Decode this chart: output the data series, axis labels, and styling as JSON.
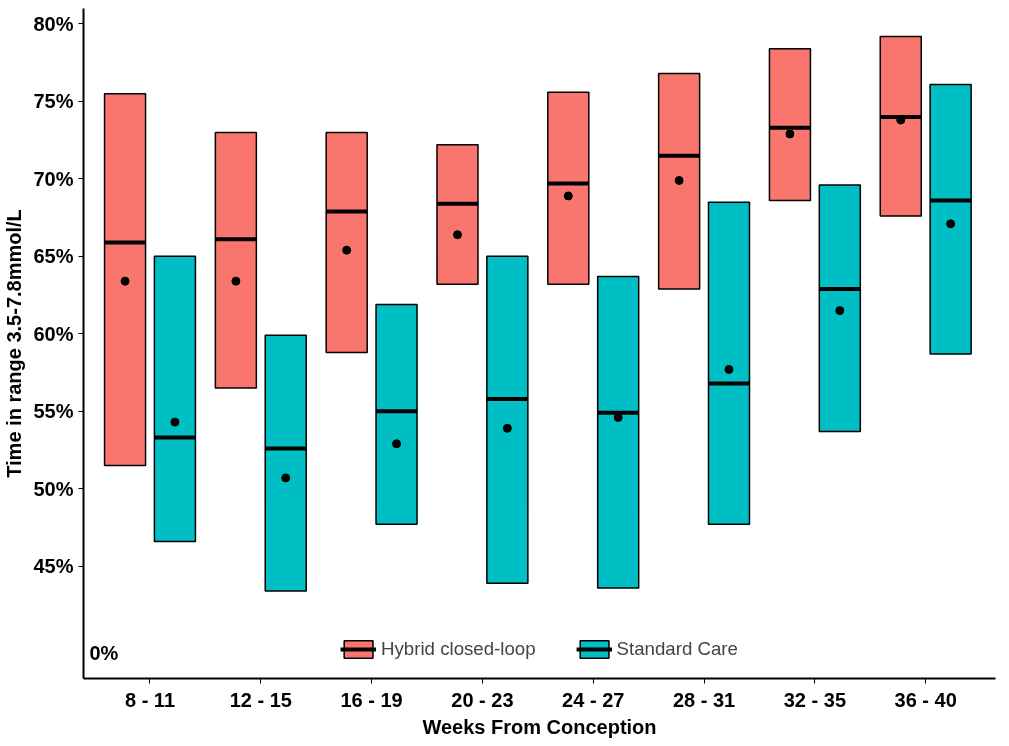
{
  "chart_data": {
    "type": "box",
    "xlabel": "Weeks From Conception",
    "ylabel": "Time in range 3.5-7.8mmol/L",
    "categories": [
      "8 - 11",
      "12 - 15",
      "16 - 19",
      "20 - 23",
      "24 - 27",
      "28 - 31",
      "32 - 35",
      "36 - 40"
    ],
    "ylim": [
      37.75,
      81
    ],
    "yticks": [
      {
        "value": 45,
        "label": "45%"
      },
      {
        "value": 50,
        "label": "50%"
      },
      {
        "value": 55,
        "label": "55%"
      },
      {
        "value": 60,
        "label": "60%"
      },
      {
        "value": 65,
        "label": "65%"
      },
      {
        "value": 70,
        "label": "70%"
      },
      {
        "value": 75,
        "label": "75%"
      },
      {
        "value": 80,
        "label": "80%"
      }
    ],
    "annotations": [
      "0%"
    ],
    "grid": false,
    "legend": "bottom",
    "marker": "circle",
    "series": [
      {
        "name": "Hybrid closed-loop",
        "color": "#f8766d",
        "boxes": [
          {
            "low": 51.5,
            "q1": 51.5,
            "median": 65.9,
            "q3": 75.5,
            "high": 75.5,
            "mean": 63.4
          },
          {
            "low": 56.5,
            "q1": 56.5,
            "median": 66.1,
            "q3": 73.0,
            "high": 73.0,
            "mean": 63.4
          },
          {
            "low": 58.8,
            "q1": 58.8,
            "median": 67.9,
            "q3": 73.0,
            "high": 73.0,
            "mean": 65.4
          },
          {
            "low": 63.2,
            "q1": 63.2,
            "median": 68.4,
            "q3": 72.2,
            "high": 72.2,
            "mean": 66.4
          },
          {
            "low": 63.2,
            "q1": 63.2,
            "median": 69.7,
            "q3": 75.6,
            "high": 75.6,
            "mean": 68.9
          },
          {
            "low": 62.9,
            "q1": 62.9,
            "median": 71.5,
            "q3": 76.8,
            "high": 76.8,
            "mean": 69.9
          },
          {
            "low": 68.6,
            "q1": 68.6,
            "median": 73.3,
            "q3": 78.4,
            "high": 78.4,
            "mean": 72.9
          },
          {
            "low": 67.6,
            "q1": 67.6,
            "median": 74.0,
            "q3": 79.2,
            "high": 79.2,
            "mean": 73.8
          }
        ]
      },
      {
        "name": "Standard Care",
        "color": "#00bfc4",
        "boxes": [
          {
            "low": 46.6,
            "q1": 46.6,
            "median": 53.3,
            "q3": 65.0,
            "high": 65.0,
            "mean": 54.3
          },
          {
            "low": 43.4,
            "q1": 43.4,
            "median": 52.6,
            "q3": 59.9,
            "high": 59.9,
            "mean": 50.7
          },
          {
            "low": 47.7,
            "q1": 47.7,
            "median": 55.0,
            "q3": 61.9,
            "high": 61.9,
            "mean": 52.9
          },
          {
            "low": 43.9,
            "q1": 43.9,
            "median": 55.8,
            "q3": 65.0,
            "high": 65.0,
            "mean": 53.9
          },
          {
            "low": 43.6,
            "q1": 43.6,
            "median": 54.9,
            "q3": 63.7,
            "high": 63.7,
            "mean": 54.6
          },
          {
            "low": 47.7,
            "q1": 47.7,
            "median": 56.8,
            "q3": 68.5,
            "high": 68.5,
            "mean": 57.7
          },
          {
            "low": 53.7,
            "q1": 53.7,
            "median": 62.9,
            "q3": 69.6,
            "high": 69.6,
            "mean": 61.5
          },
          {
            "low": 58.7,
            "q1": 58.7,
            "median": 68.6,
            "q3": 76.1,
            "high": 76.1,
            "mean": 67.1
          }
        ]
      }
    ]
  }
}
